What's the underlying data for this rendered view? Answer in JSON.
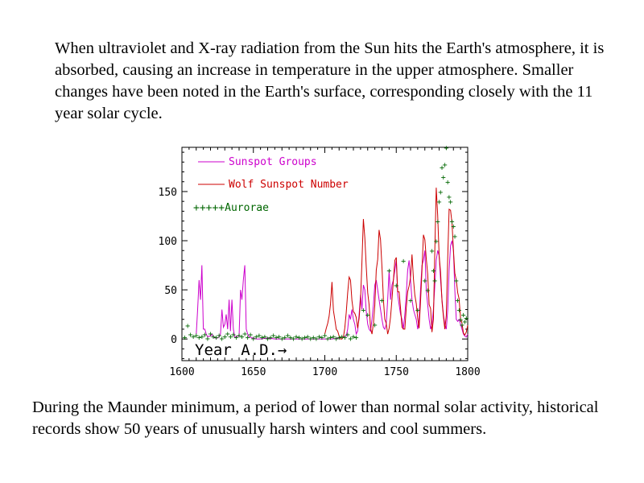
{
  "intro_text": "When ultraviolet and X-ray radiation from the Sun hits the Earth's atmosphere, it is absorbed, causing an increase in temperature in the upper atmosphere.  Smaller changes have been noted in the Earth's surface, corresponding closely with the 11 year solar cycle.",
  "outro_text": "During the Maunder minimum, a period of lower than normal solar activity, historical records show 50 years of unusually harsh winters and cool summers.",
  "chart_data": {
    "type": "line",
    "title": "",
    "xlabel": "Year A.D.→",
    "ylabel": "",
    "xlim": [
      1600,
      1800
    ],
    "ylim": [
      -22,
      195
    ],
    "xticks": [
      1600,
      1650,
      1700,
      1750,
      1800
    ],
    "yticks": [
      0,
      50,
      100,
      150
    ],
    "grid": false,
    "legend_position": "top-left",
    "colors": {
      "groups": "#cc00cc",
      "wolf": "#cc0000",
      "aurorae": "#006600"
    },
    "series": [
      {
        "name": "Sunspot Groups",
        "key": "groups",
        "style": "line",
        "x": [
          1610,
          1611,
          1612,
          1613,
          1614,
          1615,
          1616,
          1617,
          1618,
          1619,
          1620,
          1621,
          1622,
          1623,
          1624,
          1625,
          1626,
          1627,
          1628,
          1629,
          1630,
          1631,
          1632,
          1633,
          1634,
          1635,
          1636,
          1637,
          1638,
          1639,
          1640,
          1641,
          1642,
          1643,
          1644,
          1645,
          1646,
          1647,
          1648,
          1649,
          1650,
          1652,
          1655,
          1660,
          1665,
          1670,
          1675,
          1680,
          1685,
          1690,
          1695,
          1700,
          1705,
          1710,
          1712,
          1715,
          1716,
          1717,
          1718,
          1719,
          1720,
          1721,
          1722,
          1723,
          1724,
          1725,
          1726,
          1727,
          1728,
          1729,
          1730,
          1731,
          1732,
          1733,
          1734,
          1735,
          1736,
          1737,
          1738,
          1739,
          1740,
          1741,
          1742,
          1743,
          1744,
          1745,
          1746,
          1747,
          1748,
          1749,
          1750,
          1751,
          1752,
          1753,
          1754,
          1755,
          1756,
          1757,
          1758,
          1759,
          1760,
          1761,
          1762,
          1763,
          1764,
          1765,
          1766,
          1767,
          1768,
          1769,
          1770,
          1771,
          1772,
          1773,
          1774,
          1775,
          1776,
          1777,
          1778,
          1779,
          1780,
          1781,
          1782,
          1783,
          1784,
          1785,
          1786,
          1787,
          1788,
          1789,
          1790,
          1791,
          1792,
          1793,
          1794,
          1795,
          1796,
          1797,
          1798,
          1799,
          1800
        ],
        "values": [
          5,
          30,
          60,
          40,
          75,
          10,
          10,
          5,
          2,
          3,
          3,
          5,
          2,
          1,
          1,
          1,
          2,
          5,
          30,
          12,
          15,
          25,
          10,
          40,
          8,
          40,
          10,
          2,
          2,
          3,
          3,
          50,
          40,
          60,
          75,
          10,
          5,
          2,
          2,
          1,
          1,
          0,
          0,
          1,
          0,
          0,
          0,
          0,
          0,
          0,
          0,
          0,
          0,
          1,
          2,
          3,
          10,
          25,
          20,
          30,
          20,
          15,
          5,
          8,
          25,
          45,
          30,
          55,
          50,
          28,
          15,
          10,
          8,
          20,
          35,
          55,
          60,
          50,
          40,
          30,
          20,
          12,
          10,
          15,
          40,
          70,
          40,
          55,
          60,
          70,
          80,
          45,
          35,
          25,
          20,
          10,
          25,
          45,
          70,
          80,
          60,
          40,
          30,
          25,
          20,
          10,
          20,
          50,
          75,
          80,
          90,
          50,
          35,
          20,
          10,
          15,
          30,
          55,
          80,
          90,
          85,
          60,
          40,
          25,
          15,
          10,
          30,
          70,
          95,
          100,
          90,
          50,
          20,
          18,
          20,
          15,
          10,
          5,
          3,
          2,
          5
        ]
      },
      {
        "name": "Wolf Sunspot Number",
        "key": "wolf",
        "style": "line",
        "x": [
          1700,
          1701,
          1702,
          1703,
          1704,
          1705,
          1706,
          1707,
          1708,
          1709,
          1710,
          1711,
          1712,
          1713,
          1714,
          1715,
          1716,
          1717,
          1718,
          1719,
          1720,
          1721,
          1722,
          1723,
          1724,
          1725,
          1726,
          1727,
          1728,
          1729,
          1730,
          1731,
          1732,
          1733,
          1734,
          1735,
          1736,
          1737,
          1738,
          1739,
          1740,
          1741,
          1742,
          1743,
          1744,
          1745,
          1746,
          1747,
          1748,
          1749,
          1750,
          1751,
          1752,
          1753,
          1754,
          1755,
          1756,
          1757,
          1758,
          1759,
          1760,
          1761,
          1762,
          1763,
          1764,
          1765,
          1766,
          1767,
          1768,
          1769,
          1770,
          1771,
          1772,
          1773,
          1774,
          1775,
          1776,
          1777,
          1778,
          1779,
          1780,
          1781,
          1782,
          1783,
          1784,
          1785,
          1786,
          1787,
          1788,
          1789,
          1790,
          1791,
          1792,
          1793,
          1794,
          1795,
          1796,
          1797,
          1798,
          1799,
          1800
        ],
        "values": [
          5,
          11,
          16,
          23,
          36,
          58,
          29,
          20,
          10,
          8,
          3,
          0,
          0,
          2,
          11,
          27,
          47,
          63,
          60,
          39,
          28,
          26,
          22,
          11,
          21,
          40,
          78,
          122,
          103,
          73,
          47,
          35,
          11,
          5,
          16,
          34,
          70,
          81,
          111,
          101,
          73,
          40,
          20,
          16,
          5,
          11,
          22,
          40,
          60,
          80,
          83,
          48,
          48,
          31,
          12,
          10,
          10,
          32,
          48,
          54,
          63,
          86,
          61,
          45,
          36,
          21,
          11,
          38,
          70,
          106,
          101,
          82,
          66,
          35,
          31,
          7,
          20,
          92,
          154,
          126,
          85,
          68,
          38,
          23,
          10,
          24,
          83,
          132,
          131,
          118,
          90,
          67,
          60,
          47,
          41,
          21,
          16,
          6,
          4,
          7,
          14
        ]
      },
      {
        "name": "Aurorae",
        "key": "aurorae",
        "style": "markers",
        "marker": "+",
        "x": [
          1602,
          1604,
          1606,
          1608,
          1610,
          1612,
          1614,
          1616,
          1618,
          1620,
          1622,
          1624,
          1626,
          1628,
          1630,
          1632,
          1634,
          1636,
          1638,
          1640,
          1642,
          1644,
          1646,
          1648,
          1650,
          1652,
          1654,
          1656,
          1658,
          1660,
          1662,
          1664,
          1666,
          1668,
          1670,
          1672,
          1674,
          1676,
          1678,
          1680,
          1682,
          1684,
          1686,
          1688,
          1690,
          1692,
          1694,
          1696,
          1698,
          1700,
          1702,
          1704,
          1706,
          1708,
          1710,
          1712,
          1714,
          1716,
          1718,
          1720,
          1722,
          1727,
          1730,
          1735,
          1740,
          1745,
          1750,
          1755,
          1760,
          1765,
          1770,
          1772,
          1775,
          1776,
          1777,
          1778,
          1779,
          1780,
          1781,
          1782,
          1783,
          1784,
          1785,
          1786,
          1787,
          1788,
          1789,
          1790,
          1791,
          1792,
          1793,
          1794,
          1795,
          1796,
          1797,
          1798,
          1799
        ],
        "values": [
          2,
          14,
          5,
          3,
          4,
          2,
          3,
          5,
          1,
          6,
          3,
          2,
          4,
          1,
          3,
          6,
          3,
          5,
          2,
          4,
          3,
          6,
          2,
          5,
          1,
          3,
          4,
          2,
          3,
          1,
          2,
          4,
          2,
          3,
          1,
          2,
          4,
          2,
          1,
          3,
          2,
          1,
          2,
          3,
          1,
          2,
          1,
          3,
          2,
          4,
          1,
          2,
          3,
          1,
          2,
          3,
          2,
          5,
          1,
          3,
          2,
          30,
          25,
          15,
          40,
          70,
          55,
          80,
          40,
          30,
          60,
          50,
          90,
          70,
          60,
          100,
          120,
          140,
          150,
          175,
          165,
          178,
          195,
          160,
          145,
          140,
          120,
          115,
          105,
          60,
          40,
          30,
          20,
          15,
          25,
          18,
          22
        ]
      }
    ]
  }
}
